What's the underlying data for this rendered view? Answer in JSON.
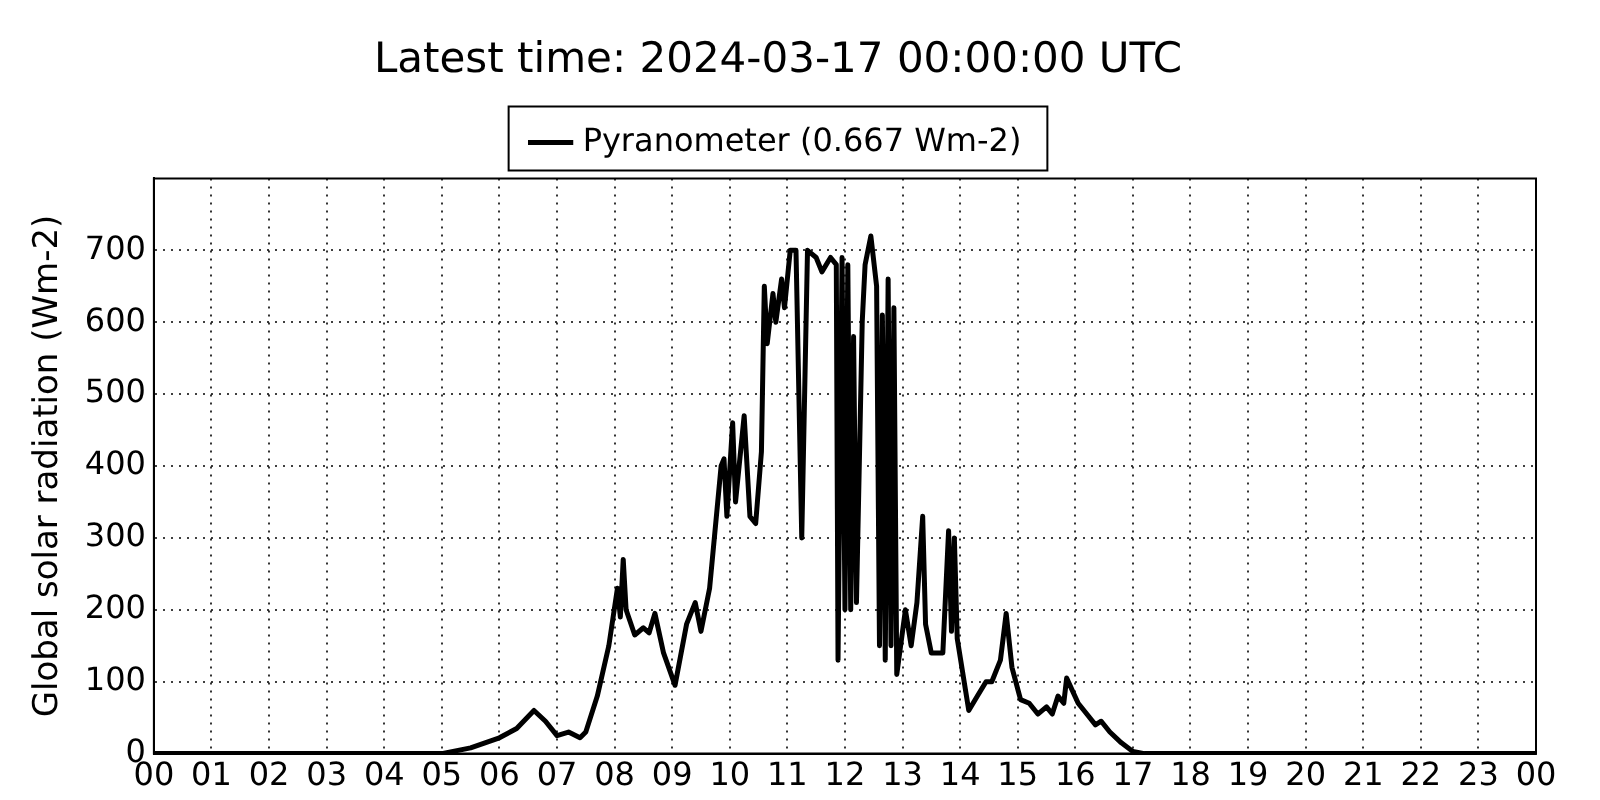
{
  "chart_data": {
    "type": "line",
    "title": "Latest time: 2024-03-17 00:00:00 UTC",
    "ylabel": "Global solar radiation (Wm-2)",
    "xlim": [
      0,
      24
    ],
    "ylim": [
      0,
      800
    ],
    "xticks": [
      {
        "value": 0,
        "label": "00"
      },
      {
        "value": 1,
        "label": "01"
      },
      {
        "value": 2,
        "label": "02"
      },
      {
        "value": 3,
        "label": "03"
      },
      {
        "value": 4,
        "label": "04"
      },
      {
        "value": 5,
        "label": "05"
      },
      {
        "value": 6,
        "label": "06"
      },
      {
        "value": 7,
        "label": "07"
      },
      {
        "value": 8,
        "label": "08"
      },
      {
        "value": 9,
        "label": "09"
      },
      {
        "value": 10,
        "label": "10"
      },
      {
        "value": 11,
        "label": "11"
      },
      {
        "value": 12,
        "label": "12"
      },
      {
        "value": 13,
        "label": "13"
      },
      {
        "value": 14,
        "label": "14"
      },
      {
        "value": 15,
        "label": "15"
      },
      {
        "value": 16,
        "label": "16"
      },
      {
        "value": 17,
        "label": "17"
      },
      {
        "value": 18,
        "label": "18"
      },
      {
        "value": 19,
        "label": "19"
      },
      {
        "value": 20,
        "label": "20"
      },
      {
        "value": 21,
        "label": "21"
      },
      {
        "value": 22,
        "label": "22"
      },
      {
        "value": 23,
        "label": "23"
      },
      {
        "value": 24,
        "label": "00"
      }
    ],
    "yticks": [
      0,
      100,
      200,
      300,
      400,
      500,
      600,
      700
    ],
    "grid": true,
    "legend": "top",
    "line_style": "solid",
    "marker": "none",
    "x": [
      0,
      5,
      5.5,
      6,
      6.3,
      6.6,
      6.8,
      7.0,
      7.2,
      7.4,
      7.5,
      7.7,
      7.9,
      8.05,
      8.1,
      8.15,
      8.2,
      8.35,
      8.5,
      8.6,
      8.7,
      8.85,
      9.05,
      9.25,
      9.4,
      9.5,
      9.65,
      9.85,
      9.9,
      9.95,
      10.05,
      10.1,
      10.25,
      10.35,
      10.45,
      10.55,
      10.6,
      10.65,
      10.75,
      10.8,
      10.9,
      10.95,
      11.05,
      11.15,
      11.25,
      11.35,
      11.5,
      11.6,
      11.75,
      11.85,
      11.88,
      11.95,
      12.0,
      12.05,
      12.1,
      12.15,
      12.2,
      12.3,
      12.35,
      12.45,
      12.55,
      12.6,
      12.65,
      12.7,
      12.75,
      12.8,
      12.85,
      12.9,
      13.05,
      13.15,
      13.25,
      13.35,
      13.4,
      13.5,
      13.7,
      13.8,
      13.85,
      13.9,
      13.95,
      14.15,
      14.3,
      14.45,
      14.55,
      14.7,
      14.8,
      14.9,
      15.05,
      15.2,
      15.35,
      15.5,
      15.6,
      15.7,
      15.8,
      15.85,
      16.05,
      16.2,
      16.35,
      16.45,
      16.6,
      16.8,
      17.0,
      17.2,
      24
    ],
    "series": [
      {
        "name": "Pyranometer (0.667 Wm-2)",
        "color": "#000000",
        "values": [
          0,
          0,
          8,
          22,
          35,
          60,
          45,
          25,
          30,
          22,
          30,
          80,
          150,
          230,
          190,
          270,
          200,
          165,
          175,
          168,
          195,
          140,
          95,
          180,
          210,
          170,
          230,
          400,
          410,
          330,
          460,
          350,
          470,
          330,
          320,
          420,
          650,
          570,
          640,
          600,
          660,
          620,
          700,
          700,
          300,
          700,
          690,
          670,
          690,
          680,
          130,
          690,
          200,
          680,
          200,
          580,
          210,
          600,
          680,
          720,
          650,
          150,
          610,
          130,
          660,
          150,
          620,
          110,
          200,
          150,
          210,
          330,
          180,
          140,
          140,
          310,
          170,
          300,
          160,
          60,
          80,
          100,
          100,
          130,
          195,
          120,
          75,
          70,
          55,
          65,
          55,
          80,
          70,
          105,
          70,
          55,
          40,
          45,
          30,
          15,
          3,
          0,
          0
        ]
      }
    ]
  }
}
